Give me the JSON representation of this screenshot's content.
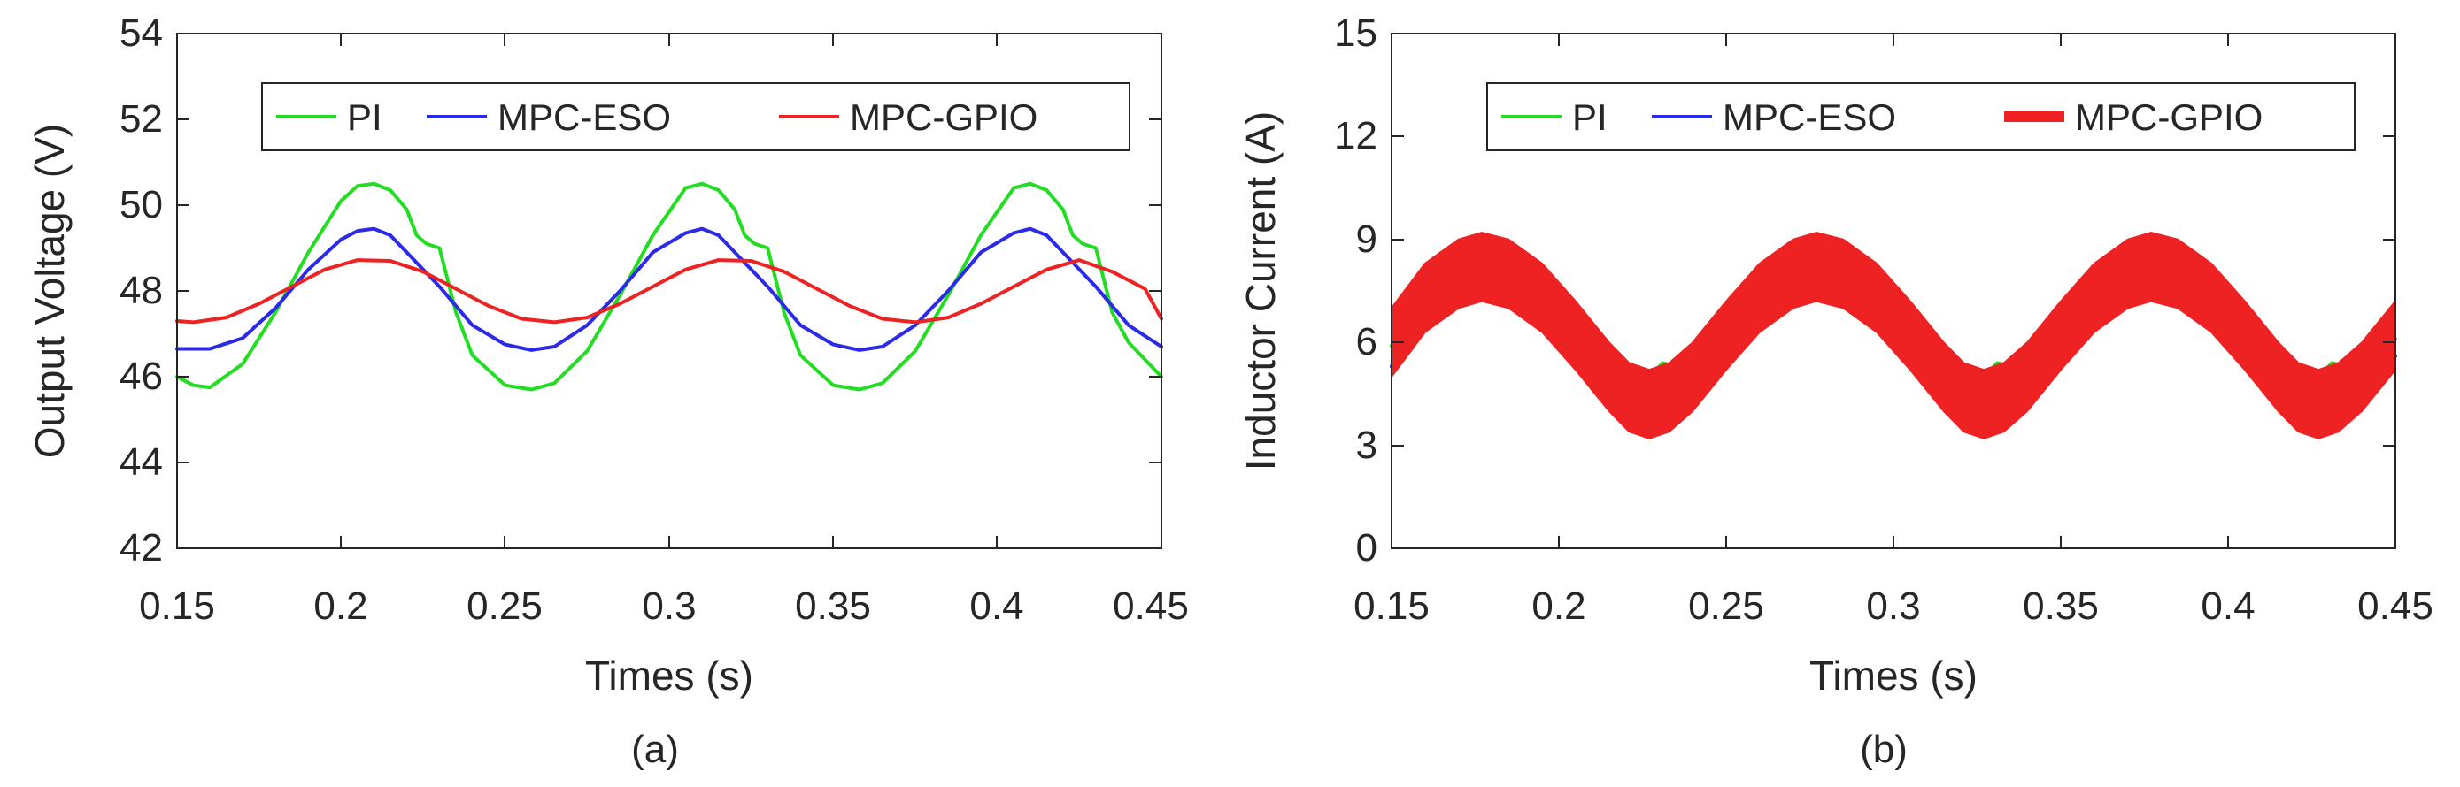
{
  "colors": {
    "pi": "#22dd22",
    "mpc_eso": "#2a2ae8",
    "mpc_gpio": "#ee2222",
    "axis": "#262626",
    "background": "#ffffff"
  },
  "chart_data": [
    {
      "id": "a",
      "type": "line",
      "caption": "(a)",
      "title": "",
      "xlabel": "Times (s)",
      "ylabel": "Output Voltage (V)",
      "xlim": [
        0.15,
        0.45
      ],
      "ylim": [
        42,
        54
      ],
      "xticks": [
        0.15,
        0.2,
        0.25,
        0.3,
        0.35,
        0.4,
        0.45
      ],
      "xtick_labels": [
        "0.15",
        "0.2",
        "0.25",
        "0.3",
        "0.35",
        "0.4",
        "0.45"
      ],
      "yticks": [
        42,
        44,
        46,
        48,
        50,
        52,
        54
      ],
      "ytick_labels": [
        "42",
        "44",
        "46",
        "48",
        "50",
        "52",
        "54"
      ],
      "grid": false,
      "legend": {
        "placement": "top-right",
        "entries": [
          "PI",
          "MPC-ESO",
          "MPC-GPIO"
        ]
      },
      "series": [
        {
          "name": "PI",
          "color_key": "pi",
          "x": [
            0.15,
            0.155,
            0.16,
            0.17,
            0.18,
            0.19,
            0.2,
            0.205,
            0.21,
            0.215,
            0.22,
            0.223,
            0.226,
            0.23,
            0.235,
            0.24,
            0.25,
            0.258,
            0.265,
            0.275,
            0.285,
            0.295,
            0.305,
            0.31,
            0.315,
            0.32,
            0.323,
            0.326,
            0.33,
            0.335,
            0.34,
            0.35,
            0.358,
            0.365,
            0.375,
            0.385,
            0.395,
            0.405,
            0.41,
            0.415,
            0.42,
            0.423,
            0.426,
            0.43,
            0.435,
            0.44,
            0.45
          ],
          "y": [
            46.0,
            45.8,
            45.75,
            46.3,
            47.5,
            48.9,
            50.1,
            50.45,
            50.5,
            50.35,
            49.9,
            49.3,
            49.1,
            49.0,
            47.5,
            46.5,
            45.8,
            45.7,
            45.85,
            46.6,
            47.9,
            49.3,
            50.4,
            50.5,
            50.35,
            49.9,
            49.3,
            49.1,
            49.0,
            47.5,
            46.5,
            45.8,
            45.7,
            45.85,
            46.6,
            47.9,
            49.3,
            50.4,
            50.5,
            50.35,
            49.9,
            49.3,
            49.1,
            49.0,
            47.5,
            46.8,
            46.0
          ]
        },
        {
          "name": "MPC-ESO",
          "color_key": "mpc_eso",
          "x": [
            0.15,
            0.16,
            0.17,
            0.18,
            0.19,
            0.2,
            0.205,
            0.21,
            0.215,
            0.22,
            0.23,
            0.24,
            0.25,
            0.258,
            0.265,
            0.275,
            0.285,
            0.295,
            0.305,
            0.31,
            0.315,
            0.32,
            0.33,
            0.34,
            0.35,
            0.358,
            0.365,
            0.375,
            0.385,
            0.395,
            0.405,
            0.41,
            0.415,
            0.42,
            0.43,
            0.44,
            0.45
          ],
          "y": [
            46.65,
            46.65,
            46.9,
            47.6,
            48.5,
            49.2,
            49.4,
            49.45,
            49.3,
            48.9,
            48.1,
            47.2,
            46.75,
            46.62,
            46.7,
            47.2,
            48.0,
            48.9,
            49.35,
            49.45,
            49.3,
            48.9,
            48.1,
            47.2,
            46.75,
            46.62,
            46.7,
            47.2,
            48.0,
            48.9,
            49.35,
            49.45,
            49.3,
            48.9,
            48.1,
            47.2,
            46.7
          ]
        },
        {
          "name": "MPC-GPIO",
          "color_key": "mpc_gpio",
          "x": [
            0.15,
            0.155,
            0.165,
            0.175,
            0.185,
            0.195,
            0.205,
            0.215,
            0.225,
            0.235,
            0.245,
            0.255,
            0.265,
            0.275,
            0.285,
            0.295,
            0.305,
            0.315,
            0.325,
            0.335,
            0.345,
            0.355,
            0.365,
            0.375,
            0.385,
            0.395,
            0.405,
            0.415,
            0.425,
            0.435,
            0.445,
            0.45
          ],
          "y": [
            47.3,
            47.27,
            47.38,
            47.7,
            48.1,
            48.5,
            48.72,
            48.7,
            48.45,
            48.05,
            47.65,
            47.35,
            47.27,
            47.38,
            47.7,
            48.1,
            48.5,
            48.72,
            48.7,
            48.45,
            48.05,
            47.65,
            47.35,
            47.27,
            47.38,
            47.7,
            48.1,
            48.5,
            48.72,
            48.45,
            48.05,
            47.35
          ]
        }
      ]
    },
    {
      "id": "b",
      "type": "line",
      "caption": "(b)",
      "title": "",
      "xlabel": "Times (s)",
      "ylabel": "Inductor Current (A)",
      "xlim": [
        0.15,
        0.45
      ],
      "ylim": [
        0,
        15
      ],
      "xticks": [
        0.15,
        0.2,
        0.25,
        0.3,
        0.35,
        0.4,
        0.45
      ],
      "xtick_labels": [
        "0.15",
        "0.2",
        "0.25",
        "0.3",
        "0.35",
        "0.4",
        "0.45"
      ],
      "yticks": [
        0,
        3,
        6,
        9,
        12,
        15
      ],
      "ytick_labels": [
        "0",
        "3",
        "6",
        "9",
        "12",
        "15"
      ],
      "grid": false,
      "legend": {
        "placement": "top-right",
        "entries": [
          "PI",
          "MPC-ESO",
          "MPC-GPIO"
        ]
      },
      "series": [
        {
          "name": "PI",
          "color_key": "pi",
          "x": [
            0.15,
            0.16,
            0.17,
            0.177,
            0.185,
            0.195,
            0.205,
            0.215,
            0.222,
            0.227,
            0.231,
            0.24,
            0.25,
            0.26,
            0.27,
            0.277,
            0.285,
            0.295,
            0.305,
            0.315,
            0.322,
            0.327,
            0.331,
            0.34,
            0.35,
            0.36,
            0.37,
            0.377,
            0.385,
            0.395,
            0.405,
            0.415,
            0.422,
            0.427,
            0.431,
            0.44,
            0.45
          ],
          "y": [
            5.9,
            7.6,
            8.7,
            9.0,
            8.8,
            8.1,
            7.0,
            5.8,
            5.0,
            5.0,
            5.4,
            5.2,
            6.0,
            7.6,
            8.7,
            9.0,
            8.8,
            8.1,
            7.0,
            5.8,
            5.0,
            5.0,
            5.4,
            5.2,
            6.0,
            7.6,
            8.7,
            9.0,
            8.8,
            8.1,
            7.0,
            5.8,
            5.0,
            5.0,
            5.4,
            5.2,
            6.1
          ]
        },
        {
          "name": "MPC-ESO",
          "color_key": "mpc_eso",
          "x": [
            0.15,
            0.16,
            0.17,
            0.177,
            0.185,
            0.195,
            0.205,
            0.215,
            0.221,
            0.227,
            0.233,
            0.24,
            0.25,
            0.26,
            0.27,
            0.277,
            0.285,
            0.295,
            0.305,
            0.315,
            0.321,
            0.327,
            0.333,
            0.34,
            0.35,
            0.36,
            0.37,
            0.377,
            0.385,
            0.395,
            0.405,
            0.415,
            0.421,
            0.427,
            0.433,
            0.44,
            0.45
          ],
          "y": [
            5.3,
            7.0,
            8.2,
            8.6,
            8.3,
            7.4,
            6.2,
            5.0,
            4.6,
            4.5,
            4.7,
            5.2,
            6.5,
            7.8,
            8.5,
            8.6,
            8.3,
            7.4,
            6.2,
            5.0,
            4.6,
            4.5,
            4.7,
            5.2,
            6.5,
            7.8,
            8.5,
            8.6,
            8.3,
            7.4,
            6.2,
            5.0,
            4.6,
            4.5,
            4.7,
            5.2,
            5.6
          ]
        },
        {
          "name": "MPC-GPIO",
          "color_key": "mpc_gpio",
          "x": [
            0.15,
            0.16,
            0.17,
            0.177,
            0.185,
            0.195,
            0.205,
            0.215,
            0.221,
            0.227,
            0.233,
            0.24,
            0.25,
            0.26,
            0.27,
            0.277,
            0.285,
            0.295,
            0.305,
            0.315,
            0.321,
            0.327,
            0.333,
            0.34,
            0.35,
            0.36,
            0.37,
            0.377,
            0.385,
            0.395,
            0.405,
            0.415,
            0.421,
            0.427,
            0.433,
            0.44,
            0.45
          ],
          "y": [
            6.0,
            7.3,
            8.0,
            8.2,
            8.0,
            7.3,
            6.2,
            5.0,
            4.4,
            4.2,
            4.4,
            5.0,
            6.2,
            7.3,
            8.0,
            8.2,
            8.0,
            7.3,
            6.2,
            5.0,
            4.4,
            4.2,
            4.4,
            5.0,
            6.2,
            7.3,
            8.0,
            8.2,
            8.0,
            7.3,
            6.2,
            5.0,
            4.4,
            4.2,
            4.4,
            5.0,
            6.2
          ],
          "band_half_width": 1.0
        }
      ]
    }
  ]
}
